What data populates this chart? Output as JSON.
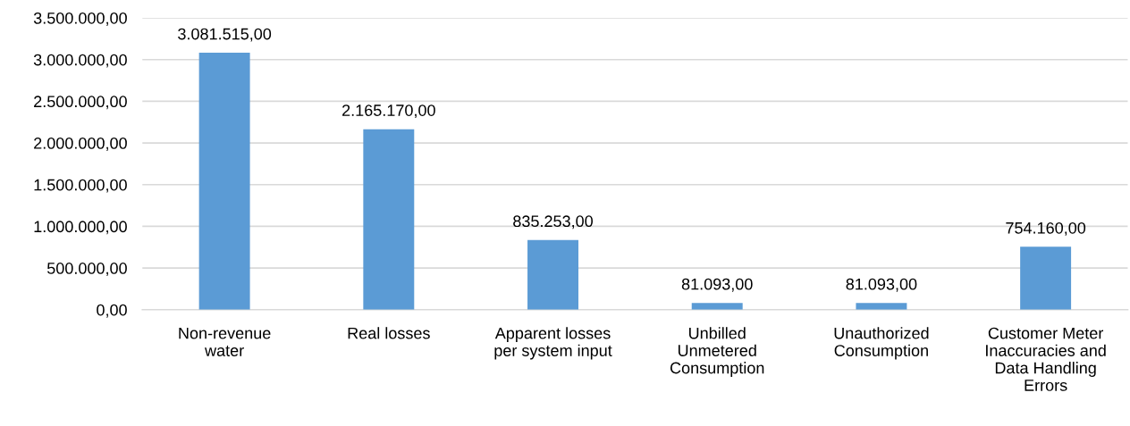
{
  "chart_data": {
    "type": "bar",
    "categories": [
      "Non-revenue\nwater",
      "Real losses",
      "Apparent losses\nper system input",
      "Unbilled\nUnmetered\nConsumption",
      "Unauthorized\nConsumption",
      "Customer Meter\nInaccuracies and\nData Handling\nErrors"
    ],
    "values": [
      3081515,
      2165170,
      835253,
      81093,
      81093,
      754160
    ],
    "value_labels": [
      "3.081.515,00",
      "2.165.170,00",
      "835.253,00",
      "81.093,00",
      "81.093,00",
      "754.160,00"
    ],
    "color": "#5b9bd5",
    "ylim": [
      0,
      3500000
    ],
    "yticks": [
      {
        "value": 0,
        "label": "0,00"
      },
      {
        "value": 500000,
        "label": "500.000,00"
      },
      {
        "value": 1000000,
        "label": "1.000.000,00"
      },
      {
        "value": 1500000,
        "label": "1.500.000,00"
      },
      {
        "value": 2000000,
        "label": "2.000.000,00"
      },
      {
        "value": 2500000,
        "label": "2.500.000,00"
      },
      {
        "value": 3000000,
        "label": "3.000.000,00"
      },
      {
        "value": 3500000,
        "label": "3.500.000,00"
      }
    ],
    "grid": "y",
    "legend": false
  }
}
